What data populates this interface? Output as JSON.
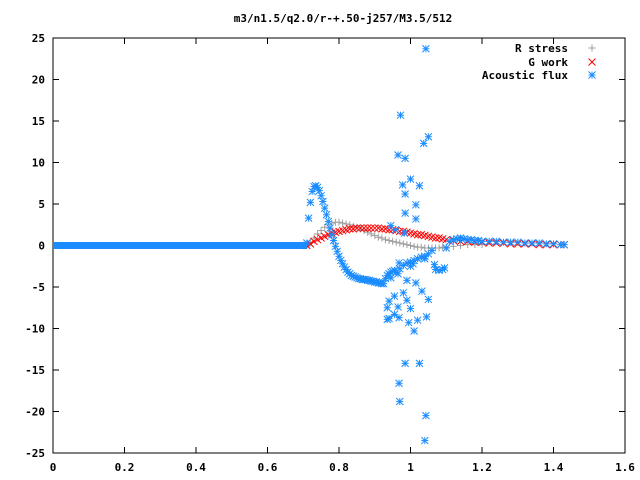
{
  "chart_data": {
    "type": "scatter",
    "title": "m3/n1.5/q2.0/r-+.50-j257/M3.5/512",
    "xlabel": "",
    "ylabel": "",
    "xlim": [
      0,
      1.6
    ],
    "ylim": [
      -25,
      25
    ],
    "xticks": [
      0,
      0.2,
      0.4,
      0.6,
      0.8,
      1,
      1.2,
      1.4,
      1.6
    ],
    "yticks": [
      25,
      20,
      15,
      10,
      5,
      0,
      -5,
      -10,
      -15,
      -20,
      -25
    ],
    "xtick_labels": [
      "0",
      "0.2",
      "0.4",
      "0.6",
      "0.8",
      "1",
      "1.2",
      "1.4",
      "1.6"
    ],
    "ytick_labels": [
      "25",
      "20",
      "15",
      "10",
      "5",
      "0",
      "-5",
      "-10",
      "-15",
      "-20",
      "-25"
    ],
    "legend_position": "top-right",
    "grid": false,
    "series": [
      {
        "name": "R stress",
        "marker": "plus",
        "color": "#a0a0a0",
        "points": [
          [
            0.71,
            0.0
          ],
          [
            0.72,
            0.4
          ],
          [
            0.73,
            0.9
          ],
          [
            0.74,
            1.4
          ],
          [
            0.75,
            1.8
          ],
          [
            0.76,
            2.2
          ],
          [
            0.77,
            2.5
          ],
          [
            0.78,
            2.7
          ],
          [
            0.79,
            2.8
          ],
          [
            0.8,
            2.8
          ],
          [
            0.81,
            2.7
          ],
          [
            0.82,
            2.6
          ],
          [
            0.83,
            2.5
          ],
          [
            0.84,
            2.3
          ],
          [
            0.85,
            2.2
          ],
          [
            0.86,
            2.0
          ],
          [
            0.87,
            1.8
          ],
          [
            0.88,
            1.6
          ],
          [
            0.89,
            1.4
          ],
          [
            0.9,
            1.2
          ],
          [
            0.91,
            1.0
          ],
          [
            0.92,
            0.9
          ],
          [
            0.93,
            0.7
          ],
          [
            0.94,
            0.6
          ],
          [
            0.95,
            0.5
          ],
          [
            0.96,
            0.4
          ],
          [
            0.97,
            0.3
          ],
          [
            0.98,
            0.2
          ],
          [
            0.99,
            0.1
          ],
          [
            1.0,
            0.0
          ],
          [
            1.01,
            -0.1
          ],
          [
            1.02,
            -0.2
          ],
          [
            1.03,
            -0.2
          ],
          [
            1.04,
            -0.3
          ],
          [
            1.05,
            -0.3
          ],
          [
            1.06,
            -0.3
          ],
          [
            1.07,
            -0.3
          ],
          [
            1.08,
            -0.3
          ],
          [
            1.09,
            -0.2
          ],
          [
            1.1,
            -0.2
          ],
          [
            1.12,
            -0.1
          ],
          [
            1.14,
            0.0
          ],
          [
            1.16,
            0.1
          ],
          [
            1.18,
            0.1
          ],
          [
            1.2,
            0.1
          ]
        ]
      },
      {
        "name": "G work",
        "marker": "cross",
        "color": "#ff0000",
        "points": [
          [
            0.71,
            0.0
          ],
          [
            0.72,
            0.2
          ],
          [
            0.73,
            0.5
          ],
          [
            0.74,
            0.7
          ],
          [
            0.75,
            0.9
          ],
          [
            0.76,
            1.1
          ],
          [
            0.77,
            1.3
          ],
          [
            0.78,
            1.5
          ],
          [
            0.79,
            1.6
          ],
          [
            0.8,
            1.7
          ],
          [
            0.81,
            1.8
          ],
          [
            0.82,
            1.9
          ],
          [
            0.83,
            2.0
          ],
          [
            0.84,
            2.0
          ],
          [
            0.85,
            2.1
          ],
          [
            0.86,
            2.1
          ],
          [
            0.87,
            2.1
          ],
          [
            0.88,
            2.1
          ],
          [
            0.89,
            2.1
          ],
          [
            0.9,
            2.1
          ],
          [
            0.91,
            2.1
          ],
          [
            0.92,
            2.0
          ],
          [
            0.93,
            2.0
          ],
          [
            0.94,
            1.9
          ],
          [
            0.95,
            1.9
          ],
          [
            0.96,
            1.8
          ],
          [
            0.97,
            1.7
          ],
          [
            0.98,
            1.7
          ],
          [
            0.99,
            1.6
          ],
          [
            1.0,
            1.5
          ],
          [
            1.01,
            1.4
          ],
          [
            1.02,
            1.3
          ],
          [
            1.03,
            1.3
          ],
          [
            1.04,
            1.2
          ],
          [
            1.05,
            1.1
          ],
          [
            1.06,
            1.0
          ],
          [
            1.07,
            0.9
          ],
          [
            1.08,
            0.9
          ],
          [
            1.09,
            0.8
          ],
          [
            1.1,
            0.7
          ],
          [
            1.12,
            0.6
          ],
          [
            1.14,
            0.5
          ],
          [
            1.16,
            0.5
          ],
          [
            1.18,
            0.4
          ],
          [
            1.2,
            0.4
          ],
          [
            1.22,
            0.3
          ],
          [
            1.24,
            0.3
          ],
          [
            1.26,
            0.3
          ],
          [
            1.28,
            0.2
          ],
          [
            1.3,
            0.2
          ],
          [
            1.32,
            0.2
          ],
          [
            1.34,
            0.2
          ],
          [
            1.36,
            0.1
          ],
          [
            1.38,
            0.1
          ],
          [
            1.4,
            0.1
          ],
          [
            1.42,
            0.1
          ],
          [
            1.43,
            0.1
          ]
        ]
      },
      {
        "name": "Acoustic flux",
        "marker": "star",
        "color": "#1a8cff",
        "baseline_x": [
          0,
          0.71
        ],
        "baseline_y": 0,
        "points": [
          [
            0.71,
            0.3
          ],
          [
            0.715,
            3.3
          ],
          [
            0.72,
            5.2
          ],
          [
            0.725,
            6.5
          ],
          [
            0.73,
            7.1
          ],
          [
            0.735,
            7.2
          ],
          [
            0.74,
            7.0
          ],
          [
            0.745,
            6.6
          ],
          [
            0.75,
            6.0
          ],
          [
            0.755,
            5.3
          ],
          [
            0.76,
            4.5
          ],
          [
            0.765,
            3.7
          ],
          [
            0.77,
            2.9
          ],
          [
            0.775,
            2.1
          ],
          [
            0.78,
            1.3
          ],
          [
            0.785,
            0.6
          ],
          [
            0.79,
            -0.1
          ],
          [
            0.795,
            -0.7
          ],
          [
            0.8,
            -1.3
          ],
          [
            0.805,
            -1.8
          ],
          [
            0.81,
            -2.2
          ],
          [
            0.815,
            -2.6
          ],
          [
            0.82,
            -2.9
          ],
          [
            0.825,
            -3.2
          ],
          [
            0.83,
            -3.4
          ],
          [
            0.835,
            -3.6
          ],
          [
            0.84,
            -3.7
          ],
          [
            0.845,
            -3.8
          ],
          [
            0.85,
            -3.9
          ],
          [
            0.855,
            -4.0
          ],
          [
            0.86,
            -4.0
          ],
          [
            0.865,
            -4.1
          ],
          [
            0.87,
            -4.1
          ],
          [
            0.875,
            -4.1
          ],
          [
            0.88,
            -4.2
          ],
          [
            0.885,
            -4.2
          ],
          [
            0.89,
            -4.3
          ],
          [
            0.895,
            -4.3
          ],
          [
            0.9,
            -4.4
          ],
          [
            0.905,
            -4.4
          ],
          [
            0.91,
            -4.5
          ],
          [
            0.915,
            -4.5
          ],
          [
            0.92,
            -4.6
          ],
          [
            0.925,
            -4.6
          ],
          [
            0.93,
            -4.0
          ],
          [
            0.935,
            -3.6
          ],
          [
            0.94,
            -3.4
          ],
          [
            0.945,
            -3.2
          ],
          [
            0.95,
            -3.1
          ],
          [
            0.955,
            -3.0
          ],
          [
            0.96,
            -3.2
          ],
          [
            0.965,
            -3.4
          ],
          [
            0.97,
            -2.8
          ],
          [
            0.98,
            -2.4
          ],
          [
            0.99,
            -2.1
          ],
          [
            1.0,
            -2.0
          ],
          [
            1.01,
            -1.8
          ],
          [
            1.02,
            -1.6
          ],
          [
            1.03,
            -1.4
          ],
          [
            1.04,
            -1.3
          ],
          [
            1.05,
            -1.0
          ],
          [
            1.06,
            -0.6
          ],
          [
            1.07,
            -2.9
          ],
          [
            1.08,
            -3.0
          ],
          [
            1.09,
            -2.9
          ],
          [
            1.1,
            -0.3
          ],
          [
            1.11,
            0.5
          ],
          [
            1.12,
            0.7
          ],
          [
            1.13,
            0.8
          ],
          [
            1.14,
            0.9
          ],
          [
            1.15,
            0.8
          ],
          [
            1.16,
            0.7
          ],
          [
            1.17,
            0.7
          ],
          [
            1.18,
            0.6
          ],
          [
            1.19,
            0.6
          ],
          [
            1.2,
            0.5
          ],
          [
            1.22,
            0.5
          ],
          [
            1.24,
            0.5
          ],
          [
            1.26,
            0.4
          ],
          [
            1.28,
            0.4
          ],
          [
            1.3,
            0.4
          ],
          [
            1.32,
            0.3
          ],
          [
            1.34,
            0.3
          ],
          [
            1.36,
            0.3
          ],
          [
            1.38,
            0.2
          ],
          [
            1.4,
            0.2
          ],
          [
            1.42,
            0.1
          ],
          [
            1.43,
            0.1
          ],
          [
            1.043,
            23.7
          ],
          [
            0.972,
            15.7
          ],
          [
            1.05,
            13.1
          ],
          [
            1.037,
            12.3
          ],
          [
            0.965,
            10.9
          ],
          [
            0.985,
            10.5
          ],
          [
            1.0,
            8.0
          ],
          [
            0.978,
            7.3
          ],
          [
            1.025,
            7.2
          ],
          [
            0.985,
            6.2
          ],
          [
            1.015,
            4.9
          ],
          [
            0.985,
            3.9
          ],
          [
            1.015,
            3.2
          ],
          [
            0.945,
            2.4
          ],
          [
            0.958,
            1.9
          ],
          [
            0.983,
            1.5
          ],
          [
            1.04,
            -1.6
          ],
          [
            0.968,
            -2.1
          ],
          [
            1.0,
            -2.5
          ],
          [
            1.007,
            -2.2
          ],
          [
            1.067,
            -2.3
          ],
          [
            1.095,
            -2.7
          ],
          [
            0.945,
            -3.9
          ],
          [
            0.99,
            -4.2
          ],
          [
            1.015,
            -4.5
          ],
          [
            0.98,
            -5.7
          ],
          [
            1.032,
            -5.5
          ],
          [
            0.94,
            -6.7
          ],
          [
            0.955,
            -6.1
          ],
          [
            0.99,
            -6.6
          ],
          [
            1.05,
            -6.5
          ],
          [
            0.935,
            -7.5
          ],
          [
            0.965,
            -7.4
          ],
          [
            1.0,
            -7.6
          ],
          [
            0.955,
            -8.3
          ],
          [
            1.045,
            -8.6
          ],
          [
            0.968,
            -8.7
          ],
          [
            0.995,
            -9.3
          ],
          [
            1.02,
            -9.0
          ],
          [
            0.94,
            -8.8
          ],
          [
            0.935,
            -8.9
          ],
          [
            1.01,
            -10.3
          ],
          [
            0.985,
            -14.2
          ],
          [
            1.025,
            -14.2
          ],
          [
            0.968,
            -16.6
          ],
          [
            0.97,
            -18.8
          ],
          [
            1.043,
            -20.5
          ],
          [
            1.04,
            -23.5
          ]
        ]
      }
    ]
  }
}
